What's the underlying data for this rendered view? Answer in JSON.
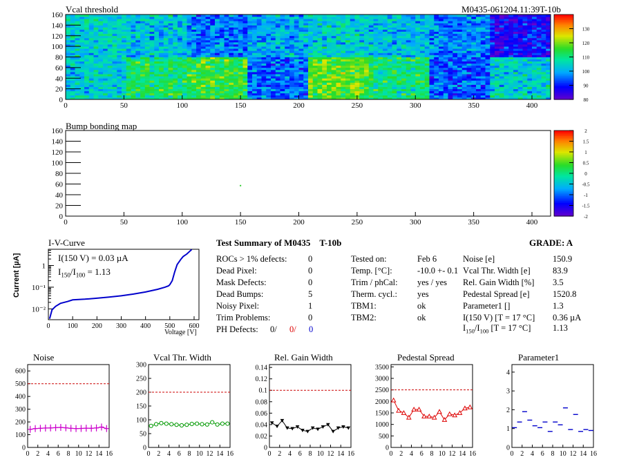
{
  "header": {
    "module_id": "M0435-061204.11:39T-10b"
  },
  "chart_data": [
    {
      "type": "heatmap",
      "title": "Vcal threshold",
      "x_ticks": [
        0,
        50,
        100,
        150,
        200,
        250,
        300,
        350,
        400
      ],
      "y_ticks": [
        0,
        20,
        40,
        60,
        80,
        100,
        120,
        140,
        160
      ],
      "xlim": [
        0,
        416
      ],
      "ylim": [
        0,
        160
      ],
      "z_ticks": [
        80,
        90,
        100,
        110,
        120,
        130
      ],
      "zlim": [
        80,
        140
      ],
      "roc_mean_top": [
        105,
        103,
        96,
        100,
        104,
        102,
        97,
        88
      ],
      "roc_mean_bottom": [
        104,
        112,
        115,
        95,
        118,
        110,
        94,
        104
      ]
    },
    {
      "type": "heatmap",
      "title": "Bump bonding map",
      "x_ticks": [
        0,
        50,
        100,
        150,
        200,
        250,
        300,
        350,
        400
      ],
      "y_ticks": [
        0,
        20,
        40,
        60,
        80,
        100,
        120,
        140,
        160
      ],
      "xlim": [
        0,
        416
      ],
      "ylim": [
        0,
        160
      ],
      "z_ticks": [
        -2,
        -1.5,
        -1,
        -0.5,
        0,
        0.5,
        1,
        1.5,
        2
      ],
      "zlim": [
        -2,
        2
      ],
      "points": [
        {
          "x": 150,
          "y": 57
        }
      ]
    },
    {
      "type": "line",
      "title": "I-V-Curve",
      "xlabel": "Voltage [V]",
      "ylabel": "Current [µA]",
      "x_ticks": [
        0,
        100,
        200,
        300,
        400,
        500,
        600
      ],
      "y_ticks": [
        "10⁻²",
        "10⁻¹",
        "1"
      ],
      "xlim": [
        0,
        620
      ],
      "ylim_log10": [
        -2.5,
        0.75
      ],
      "yscale": "log",
      "annotation_1": "I(150 V) = 0.03 µA",
      "annotation_2": "I",
      "annotation_2_sub1": "150",
      "annotation_2_mid": "/I",
      "annotation_2_sub2": "100",
      "annotation_2_tail": " =  1.13",
      "x": [
        5,
        15,
        30,
        50,
        80,
        100,
        150,
        200,
        250,
        300,
        350,
        400,
        450,
        480,
        495,
        500,
        510,
        520,
        530,
        545,
        555,
        570,
        590
      ],
      "y": [
        0.0035,
        0.009,
        0.013,
        0.018,
        0.022,
        0.026,
        0.028,
        0.031,
        0.035,
        0.04,
        0.048,
        0.06,
        0.08,
        0.1,
        0.115,
        0.13,
        0.2,
        0.5,
        1.1,
        1.9,
        2.6,
        3.4,
        5.5
      ]
    },
    {
      "type": "scatter",
      "title": "Noise",
      "x_ticks": [
        0,
        2,
        4,
        6,
        8,
        10,
        12,
        14,
        16
      ],
      "y_ticks": [
        0,
        100,
        200,
        300,
        400,
        500,
        600
      ],
      "ylim": [
        0,
        650
      ],
      "xlim": [
        0,
        16
      ],
      "limit_line": 500,
      "color": "#cc00cc",
      "values": [
        142,
        148,
        150,
        152,
        153,
        155,
        157,
        154,
        150,
        148,
        149,
        151,
        150,
        153,
        160,
        148
      ]
    },
    {
      "type": "line",
      "title": "Vcal Thr. Width",
      "x_ticks": [
        0,
        2,
        4,
        6,
        8,
        10,
        12,
        14,
        16
      ],
      "y_ticks": [
        0,
        50,
        100,
        150,
        200,
        250,
        300
      ],
      "ylim": [
        0,
        300
      ],
      "xlim": [
        0,
        16
      ],
      "limit_line": 200,
      "color": "#009900",
      "values": [
        78,
        84,
        88,
        86,
        84,
        82,
        80,
        82,
        85,
        86,
        84,
        83,
        91,
        83,
        86,
        86
      ]
    },
    {
      "type": "line",
      "title": "Rel. Gain Width",
      "x_ticks": [
        0,
        2,
        4,
        6,
        8,
        10,
        12,
        14,
        16
      ],
      "y_ticks": [
        0,
        0.02,
        0.04,
        0.06,
        0.08,
        0.1,
        0.12,
        0.14
      ],
      "ylim": [
        0,
        0.145
      ],
      "xlim": [
        0,
        16
      ],
      "limit_line": 0.1,
      "color": "#000000",
      "values": [
        0.043,
        0.037,
        0.047,
        0.034,
        0.033,
        0.036,
        0.03,
        0.028,
        0.034,
        0.032,
        0.036,
        0.04,
        0.028,
        0.034,
        0.036,
        0.034
      ]
    },
    {
      "type": "line",
      "title": "Pedestal Spread",
      "x_ticks": [
        0,
        2,
        4,
        6,
        8,
        10,
        12,
        14,
        16
      ],
      "y_ticks": [
        0,
        500,
        1000,
        1500,
        2000,
        2500,
        3000,
        3500
      ],
      "ylim": [
        0,
        3600
      ],
      "xlim": [
        0,
        16
      ],
      "limit_line": 2500,
      "color": "#dd0000",
      "values": [
        2050,
        1600,
        1500,
        1300,
        1650,
        1650,
        1350,
        1350,
        1300,
        1550,
        1200,
        1450,
        1400,
        1500,
        1700,
        1750
      ]
    },
    {
      "type": "scatter",
      "title": "Parameter1",
      "x_ticks": [
        0,
        2,
        4,
        6,
        8,
        10,
        12,
        14,
        16
      ],
      "y_ticks": [
        0,
        1,
        2,
        3,
        4
      ],
      "ylim": [
        0,
        4.4
      ],
      "xlim": [
        0,
        16
      ],
      "color": "#0000cc",
      "values": [
        1.05,
        1.35,
        1.9,
        1.45,
        1.15,
        1.05,
        1.35,
        0.85,
        1.35,
        1.2,
        2.1,
        0.95,
        1.75,
        0.85,
        0.95,
        0.9
      ]
    }
  ],
  "summary": {
    "title": "Test Summary of M0435",
    "title_suffix": "T-10b",
    "grade": "GRADE:  A",
    "left_rows": [
      {
        "label": "ROCs > 1% defects:",
        "value": "0"
      },
      {
        "label": "Dead Pixel:",
        "value": "0"
      },
      {
        "label": "Mask Defects:",
        "value": "0"
      },
      {
        "label": "Dead Bumps:",
        "value": "5"
      },
      {
        "label": "Noisy Pixel:",
        "value": "1"
      },
      {
        "label": "Trim Problems:",
        "value": "0"
      }
    ],
    "ph_label": "PH Defects:",
    "ph_values": [
      "0/",
      "0/",
      "0"
    ],
    "ph_colors": [
      "#000000",
      "#dd0000",
      "#0000cc"
    ],
    "mid_rows": [
      {
        "label": "Tested on:",
        "value": "Feb 6"
      },
      {
        "label": "Temp. [°C]:",
        "value": "-10.0 +- 0.1"
      },
      {
        "label": "Trim / phCal:",
        "value": "yes / yes"
      },
      {
        "label": "Therm. cycl.:",
        "value": "yes"
      },
      {
        "label": "TBM1:",
        "value": "ok"
      },
      {
        "label": "TBM2:",
        "value": "ok"
      }
    ],
    "right_rows": [
      {
        "label": "Noise [e]",
        "value": "150.9"
      },
      {
        "label": "Vcal Thr. Width [e]",
        "value": "83.9"
      },
      {
        "label": "Rel. Gain Width [%]",
        "value": "3.5"
      },
      {
        "label": "Pedestal Spread [e]",
        "value": "1520.8"
      },
      {
        "label": "Parameter1 []",
        "value": "1.3"
      },
      {
        "label": "I(150 V) [T = 17 °C]",
        "value": "0.36 µA"
      }
    ],
    "ratio_label": {
      "main": "I",
      "sub1": "150",
      "mid": "/I",
      "sub2": "100",
      "tail": "  [T = 17 °C]"
    },
    "ratio_value": "1.13"
  }
}
